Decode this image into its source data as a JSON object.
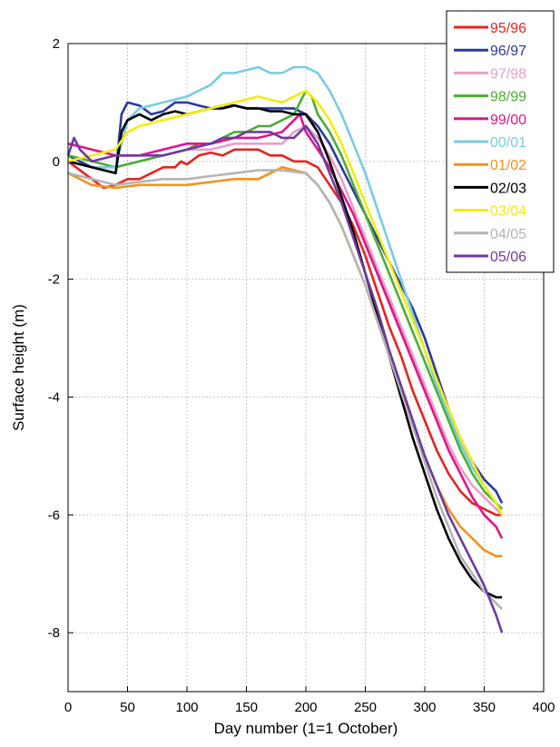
{
  "chart_data": {
    "type": "line",
    "title": "",
    "xlabel": "Day number (1=1 October)",
    "ylabel": "Surface height (m)",
    "xlim": [
      0,
      400
    ],
    "ylim": [
      -9,
      2
    ],
    "xticks": [
      0,
      50,
      100,
      150,
      200,
      250,
      300,
      350,
      400
    ],
    "yticks": [
      2,
      0,
      -2,
      -4,
      -6,
      -8
    ],
    "grid": true,
    "legend_position": "top-right",
    "series": [
      {
        "name": "95/96",
        "color": "#e8231f",
        "x": [
          0,
          20,
          30,
          40,
          50,
          60,
          70,
          80,
          90,
          95,
          100,
          110,
          120,
          130,
          140,
          150,
          160,
          170,
          180,
          190,
          200,
          210,
          220,
          230,
          240,
          250,
          260,
          270,
          280,
          290,
          300,
          310,
          320,
          330,
          340,
          350,
          360,
          365
        ],
        "y": [
          0,
          -0.3,
          -0.45,
          -0.4,
          -0.3,
          -0.3,
          -0.2,
          -0.1,
          -0.1,
          0,
          -0.05,
          0.1,
          0.15,
          0.1,
          0.2,
          0.2,
          0.2,
          0.1,
          0.1,
          0.0,
          0.0,
          -0.1,
          -0.4,
          -0.7,
          -1.1,
          -1.6,
          -2.2,
          -2.8,
          -3.3,
          -3.9,
          -4.4,
          -4.9,
          -5.3,
          -5.6,
          -5.8,
          -5.9,
          -6.0,
          -6.0
        ]
      },
      {
        "name": "96/97",
        "color": "#2b3a9e",
        "x": [
          0,
          20,
          40,
          45,
          50,
          60,
          70,
          80,
          90,
          100,
          110,
          120,
          130,
          140,
          150,
          160,
          170,
          180,
          190,
          200,
          210,
          220,
          230,
          240,
          250,
          260,
          270,
          280,
          290,
          300,
          310,
          320,
          330,
          340,
          350,
          360,
          365
        ],
        "y": [
          0.1,
          -0.1,
          -0.2,
          0.8,
          1.0,
          0.95,
          0.8,
          0.85,
          1.0,
          1.0,
          0.95,
          0.9,
          0.95,
          0.95,
          0.9,
          0.9,
          0.9,
          0.9,
          0.9,
          0.8,
          0.6,
          0.3,
          -0.1,
          -0.5,
          -0.9,
          -1.3,
          -1.7,
          -2.1,
          -2.5,
          -3.0,
          -3.6,
          -4.2,
          -4.7,
          -5.1,
          -5.4,
          -5.6,
          -5.8
        ]
      },
      {
        "name": "97/98",
        "color": "#e6a0c8",
        "x": [
          0,
          20,
          40,
          60,
          80,
          100,
          120,
          140,
          160,
          180,
          190,
          200,
          210,
          220,
          230,
          240,
          250,
          260,
          270,
          280,
          290,
          300,
          310,
          320,
          330,
          340,
          350,
          360,
          365
        ],
        "y": [
          0,
          -0.1,
          -0.1,
          0,
          0.1,
          0.2,
          0.2,
          0.3,
          0.3,
          0.3,
          0.5,
          0.6,
          0.4,
          0.1,
          -0.3,
          -0.8,
          -1.3,
          -1.8,
          -2.3,
          -2.8,
          -3.3,
          -3.8,
          -4.3,
          -4.8,
          -5.2,
          -5.5,
          -5.7,
          -5.9,
          -6.0
        ]
      },
      {
        "name": "98/99",
        "color": "#4cae34",
        "x": [
          0,
          20,
          40,
          60,
          80,
          100,
          110,
          120,
          130,
          140,
          150,
          160,
          170,
          180,
          190,
          200,
          205,
          210,
          220,
          230,
          240,
          250,
          260,
          270,
          280,
          290,
          300,
          310,
          320,
          330,
          340,
          350,
          360,
          365
        ],
        "y": [
          0.1,
          0,
          -0.1,
          0,
          0.1,
          0.2,
          0.3,
          0.3,
          0.4,
          0.5,
          0.5,
          0.6,
          0.6,
          0.7,
          0.8,
          1.2,
          1.1,
          0.8,
          0.5,
          0.1,
          -0.4,
          -0.9,
          -1.4,
          -1.9,
          -2.4,
          -2.9,
          -3.4,
          -3.9,
          -4.4,
          -4.9,
          -5.3,
          -5.6,
          -5.8,
          -5.9
        ]
      },
      {
        "name": "99/00",
        "color": "#e2158a",
        "x": [
          0,
          20,
          40,
          60,
          80,
          100,
          120,
          140,
          160,
          180,
          190,
          195,
          200,
          210,
          220,
          230,
          240,
          250,
          260,
          270,
          280,
          290,
          300,
          310,
          320,
          330,
          340,
          350,
          360,
          365
        ],
        "y": [
          0.3,
          0.2,
          0.1,
          0.1,
          0.2,
          0.3,
          0.3,
          0.4,
          0.4,
          0.5,
          0.7,
          0.8,
          0.5,
          0.2,
          -0.1,
          -0.5,
          -0.9,
          -1.4,
          -1.9,
          -2.4,
          -2.9,
          -3.4,
          -3.9,
          -4.4,
          -4.9,
          -5.3,
          -5.7,
          -6.0,
          -6.2,
          -6.4
        ]
      },
      {
        "name": "00/01",
        "color": "#78cbe6",
        "x": [
          0,
          20,
          40,
          50,
          60,
          80,
          100,
          110,
          120,
          130,
          140,
          150,
          160,
          170,
          180,
          190,
          200,
          210,
          220,
          230,
          240,
          250,
          260,
          270,
          280,
          290,
          300,
          310,
          320,
          330,
          340,
          350,
          360,
          365
        ],
        "y": [
          0,
          -0.1,
          -0.1,
          0.7,
          0.9,
          1.0,
          1.1,
          1.2,
          1.3,
          1.5,
          1.5,
          1.55,
          1.6,
          1.5,
          1.5,
          1.6,
          1.6,
          1.5,
          1.2,
          0.8,
          0.3,
          -0.2,
          -0.8,
          -1.4,
          -2.0,
          -2.6,
          -3.2,
          -3.8,
          -4.3,
          -4.8,
          -5.2,
          -5.5,
          -5.8,
          -6.0
        ]
      },
      {
        "name": "01/02",
        "color": "#f4921e",
        "x": [
          0,
          20,
          40,
          60,
          80,
          100,
          120,
          140,
          160,
          180,
          200,
          210,
          220,
          230,
          240,
          250,
          260,
          270,
          280,
          290,
          300,
          310,
          320,
          330,
          340,
          350,
          360,
          365
        ],
        "y": [
          -0.2,
          -0.4,
          -0.45,
          -0.4,
          -0.4,
          -0.4,
          -0.35,
          -0.3,
          -0.3,
          -0.1,
          -0.2,
          -0.4,
          -0.7,
          -1.1,
          -1.6,
          -2.1,
          -2.7,
          -3.3,
          -3.9,
          -4.5,
          -5.0,
          -5.5,
          -5.9,
          -6.2,
          -6.4,
          -6.6,
          -6.7,
          -6.7
        ]
      },
      {
        "name": "02/03",
        "color": "#000000",
        "x": [
          0,
          20,
          40,
          45,
          50,
          60,
          70,
          80,
          90,
          100,
          110,
          120,
          130,
          140,
          150,
          160,
          170,
          180,
          190,
          200,
          210,
          220,
          230,
          240,
          250,
          260,
          270,
          280,
          290,
          300,
          310,
          320,
          330,
          340,
          350,
          360,
          365
        ],
        "y": [
          0,
          -0.1,
          -0.2,
          0.5,
          0.7,
          0.8,
          0.7,
          0.8,
          0.85,
          0.8,
          0.85,
          0.9,
          0.9,
          0.95,
          0.9,
          0.9,
          0.85,
          0.85,
          0.8,
          0.8,
          0.5,
          0.0,
          -0.6,
          -1.2,
          -1.9,
          -2.6,
          -3.3,
          -4.0,
          -4.7,
          -5.3,
          -5.9,
          -6.4,
          -6.8,
          -7.1,
          -7.3,
          -7.4,
          -7.4
        ]
      },
      {
        "name": "03/04",
        "color": "#f4ec0f",
        "x": [
          0,
          20,
          40,
          50,
          60,
          80,
          100,
          120,
          140,
          160,
          170,
          180,
          190,
          200,
          210,
          220,
          230,
          240,
          250,
          260,
          270,
          280,
          290,
          300,
          310,
          320,
          330,
          340,
          350,
          360,
          365
        ],
        "y": [
          0,
          0.1,
          0.2,
          0.5,
          0.6,
          0.7,
          0.8,
          0.9,
          1.0,
          1.1,
          1.05,
          1.0,
          1.1,
          1.2,
          1.0,
          0.7,
          0.3,
          -0.2,
          -0.7,
          -1.2,
          -1.7,
          -2.2,
          -2.7,
          -3.2,
          -3.7,
          -4.2,
          -4.7,
          -5.1,
          -5.5,
          -5.8,
          -6.0
        ]
      },
      {
        "name": "04/05",
        "color": "#b4b4b4",
        "x": [
          0,
          20,
          40,
          60,
          80,
          100,
          120,
          140,
          160,
          180,
          200,
          210,
          220,
          230,
          240,
          250,
          260,
          270,
          280,
          290,
          300,
          310,
          320,
          330,
          340,
          350,
          360,
          365
        ],
        "y": [
          -0.2,
          -0.3,
          -0.4,
          -0.35,
          -0.3,
          -0.3,
          -0.25,
          -0.2,
          -0.15,
          -0.15,
          -0.2,
          -0.4,
          -0.7,
          -1.1,
          -1.6,
          -2.1,
          -2.7,
          -3.3,
          -3.9,
          -4.5,
          -5.1,
          -5.7,
          -6.2,
          -6.7,
          -7.0,
          -7.3,
          -7.5,
          -7.6
        ]
      },
      {
        "name": "05/06",
        "color": "#6e3aa0",
        "x": [
          0,
          5,
          10,
          20,
          40,
          60,
          80,
          100,
          120,
          130,
          140,
          150,
          160,
          170,
          180,
          190,
          200,
          210,
          220,
          230,
          240,
          250,
          260,
          270,
          280,
          290,
          300,
          310,
          320,
          330,
          340,
          350,
          360,
          365
        ],
        "y": [
          0.1,
          0.4,
          0.2,
          0,
          0.1,
          0.1,
          0.1,
          0.2,
          0.3,
          0.4,
          0.4,
          0.5,
          0.5,
          0.5,
          0.4,
          0.4,
          0.6,
          0.3,
          -0.2,
          -0.7,
          -1.3,
          -1.9,
          -2.5,
          -3.2,
          -3.8,
          -4.4,
          -5.0,
          -5.5,
          -6.0,
          -6.4,
          -6.8,
          -7.2,
          -7.7,
          -8.0
        ]
      }
    ]
  }
}
